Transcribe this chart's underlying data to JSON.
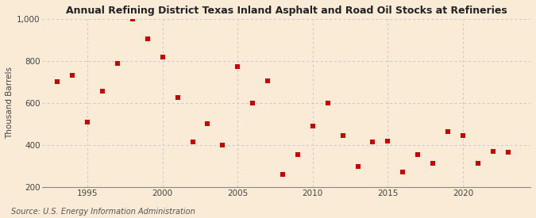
{
  "title": "Annual Refining District Texas Inland Asphalt and Road Oil Stocks at Refineries",
  "ylabel": "Thousand Barrels",
  "source": "Source: U.S. Energy Information Administration",
  "background_color": "#faebd7",
  "plot_background_color": "#faebd7",
  "grid_color": "#c8c8c8",
  "marker_color": "#cc0000",
  "years": [
    1993,
    1994,
    1995,
    1996,
    1997,
    1998,
    1999,
    2000,
    2001,
    2002,
    2003,
    2004,
    2005,
    2006,
    2007,
    2008,
    2009,
    2010,
    2011,
    2012,
    2013,
    2014,
    2015,
    2016,
    2017,
    2018,
    2019,
    2020,
    2021,
    2022,
    2023
  ],
  "values": [
    700,
    730,
    510,
    655,
    790,
    1000,
    905,
    820,
    625,
    415,
    500,
    400,
    775,
    600,
    705,
    260,
    355,
    490,
    600,
    445,
    300,
    415,
    420,
    270,
    355,
    315,
    465,
    445,
    315,
    370,
    365
  ],
  "ylim": [
    200,
    1000
  ],
  "yticks": [
    200,
    400,
    600,
    800,
    1000
  ],
  "ytick_labels": [
    "200",
    "400",
    "600",
    "800",
    "1,000"
  ],
  "xticks": [
    1995,
    2000,
    2005,
    2010,
    2015,
    2020
  ],
  "xlim": [
    1992,
    2024.5
  ],
  "title_fontsize": 9,
  "axis_fontsize": 7.5,
  "source_fontsize": 7
}
